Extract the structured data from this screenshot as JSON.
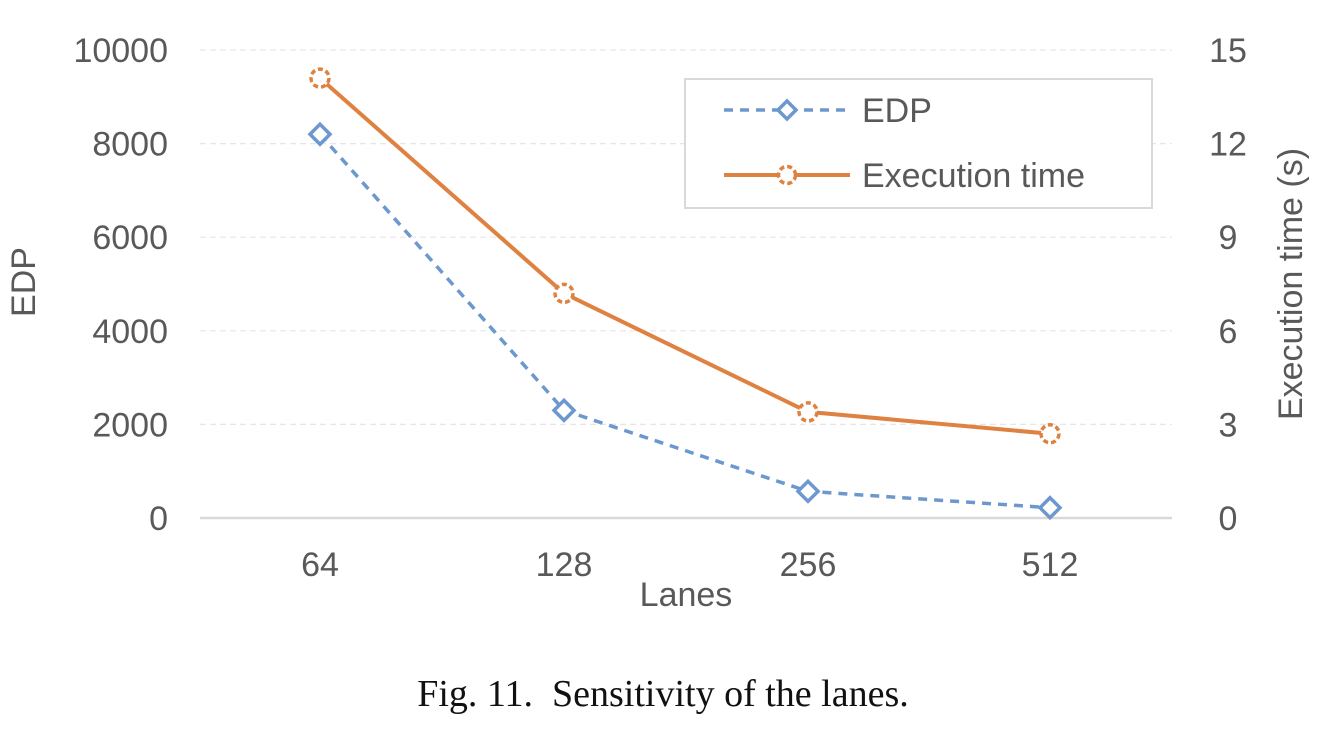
{
  "caption": "Fig. 11.  Sensitivity of the lanes.",
  "chart_data": {
    "type": "line",
    "categories": [
      "64",
      "128",
      "256",
      "512"
    ],
    "xlabel": "Lanes",
    "y_left": {
      "label": "EDP",
      "range": [
        0,
        10000
      ],
      "ticks": [
        0,
        2000,
        4000,
        6000,
        8000,
        10000
      ]
    },
    "y_right": {
      "label": "Execution time (s)",
      "range": [
        0,
        15
      ],
      "ticks": [
        0,
        3,
        6,
        9,
        12,
        15
      ]
    },
    "series": [
      {
        "name": "EDP",
        "axis": "left",
        "values": [
          8200,
          2300,
          570,
          220
        ],
        "color": "#6c98cf",
        "line_style": "dashed",
        "marker": "diamond"
      },
      {
        "name": "Execution time",
        "axis": "right",
        "values": [
          14.1,
          7.2,
          3.4,
          2.7
        ],
        "color": "#df8241",
        "line_style": "solid",
        "marker": "circle"
      }
    ],
    "grid": true,
    "legend": "top-right"
  }
}
